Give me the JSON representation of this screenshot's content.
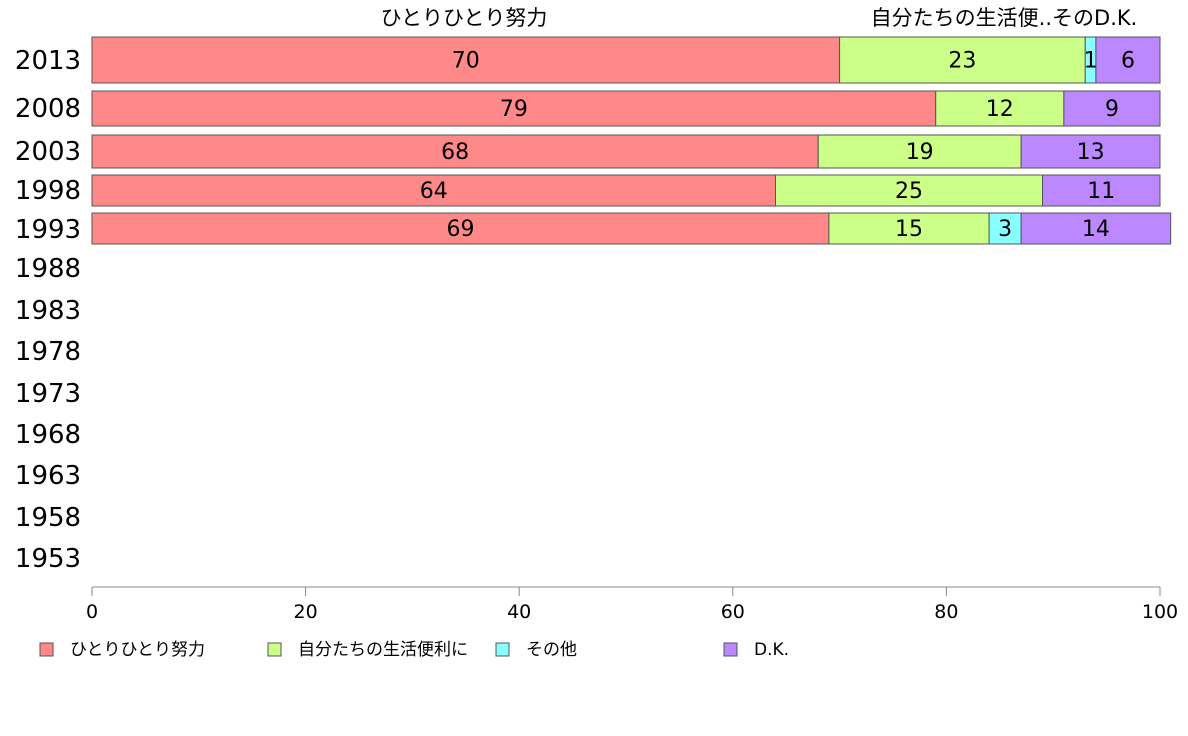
{
  "chart_data": {
    "type": "bar",
    "orientation": "horizontal",
    "stacked": true,
    "categories": [
      "2013",
      "2008",
      "2003",
      "1998",
      "1993",
      "1988",
      "1983",
      "1978",
      "1973",
      "1968",
      "1963",
      "1958",
      "1953"
    ],
    "series": [
      {
        "name": "ひとりひとり努力",
        "color": "#ff8888",
        "values": [
          70,
          79,
          68,
          64,
          69,
          null,
          null,
          null,
          null,
          null,
          null,
          null,
          null
        ]
      },
      {
        "name": "自分たちの生活便利に",
        "color": "#ccff88",
        "values": [
          23,
          12,
          19,
          25,
          15,
          null,
          null,
          null,
          null,
          null,
          null,
          null,
          null
        ]
      },
      {
        "name": "その他",
        "color": "#88ffff",
        "values": [
          1,
          0,
          0,
          0,
          3,
          null,
          null,
          null,
          null,
          null,
          null,
          null,
          null
        ]
      },
      {
        "name": "D.K.",
        "color": "#bb88ff",
        "values": [
          6,
          9,
          13,
          11,
          14,
          null,
          null,
          null,
          null,
          null,
          null,
          null,
          null
        ]
      }
    ],
    "top_labels": [
      "ひとりひとり努力",
      "自分たちの生活便..そのD.K."
    ],
    "xlim": [
      0,
      100
    ],
    "xticks": [
      0,
      20,
      40,
      60,
      80,
      100
    ],
    "grid": false,
    "legend_position": "bottom"
  }
}
